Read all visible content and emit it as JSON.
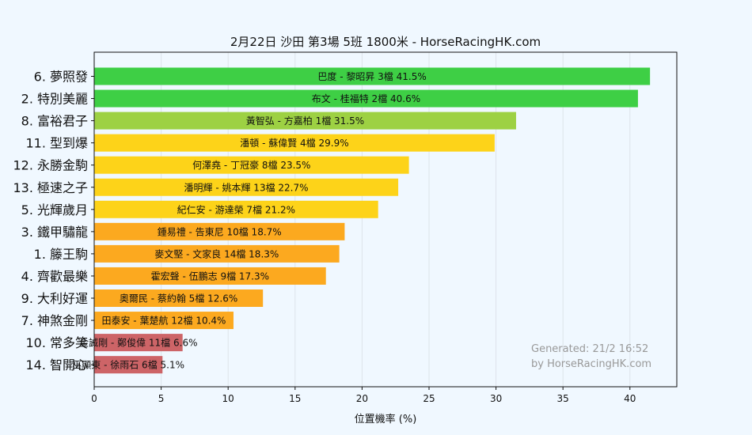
{
  "chart_data": {
    "type": "bar",
    "orientation": "horizontal",
    "title": "2月22日  沙田  第3場  5班  1800米 - HorseRacingHK.com",
    "xlabel": "位置機率 (%)",
    "ylabel": "",
    "xlim": [
      0,
      43.5
    ],
    "xticks": [
      0,
      5,
      10,
      15,
      20,
      25,
      30,
      35,
      40
    ],
    "grid": "vertical",
    "categories": [
      "6. 夢照發",
      "2. 特別美麗",
      "8. 富裕君子",
      "11. 型到爆",
      "12. 永勝金駒",
      "13. 極速之子",
      "5. 光輝歲月",
      "3. 鐵甲驌龍",
      "1. 籐王駒",
      "4. 齊歡最樂",
      "9. 大利好運",
      "7. 神煞金剛",
      "10. 常多笑",
      "14. 智開心"
    ],
    "values": [
      41.5,
      40.6,
      31.5,
      29.9,
      23.5,
      22.7,
      21.2,
      18.7,
      18.3,
      17.3,
      12.6,
      10.4,
      6.6,
      5.1
    ],
    "bar_labels": [
      "巴度 - 黎昭昇 3檔  41.5%",
      "布文 - 桂福特 2檔  40.6%",
      "黃智弘 - 方嘉柏 1檔  31.5%",
      "潘頓 - 蘇偉賢 4檔  29.9%",
      "何澤堯 - 丁冠豪 8檔  23.5%",
      "潘明輝 - 姚本輝 13檔  22.7%",
      "紀仁安 - 游達榮 7檔  21.2%",
      "鍾易禮 - 告東尼 10檔  18.7%",
      "麥文堅 - 文家良 14檔  18.3%",
      "霍宏聲 - 伍鵬志 9檔  17.3%",
      "奧爾民 - 蔡約翰 5檔  12.6%",
      "田泰安 - 葉楚航 12檔  10.4%",
      "金誠剛 - 鄭俊偉 11檔  6.6%",
      "巫顯東 - 徐雨石 6檔  5.1%"
    ],
    "colors": [
      "#3ecf45",
      "#3ecf45",
      "#9dd143",
      "#fdd319",
      "#fdd319",
      "#fdd319",
      "#fdd319",
      "#fca91f",
      "#fca91f",
      "#fca91f",
      "#fca91f",
      "#fca91f",
      "#cd6467",
      "#cd6467"
    ],
    "watermark": [
      "Generated: 21/2 16:52",
      "by HorseRacingHK.com"
    ]
  },
  "theme": {
    "background": "#f0f8ff",
    "plot_background": "#f0f8ff",
    "grid_color": "#dde3ea"
  }
}
